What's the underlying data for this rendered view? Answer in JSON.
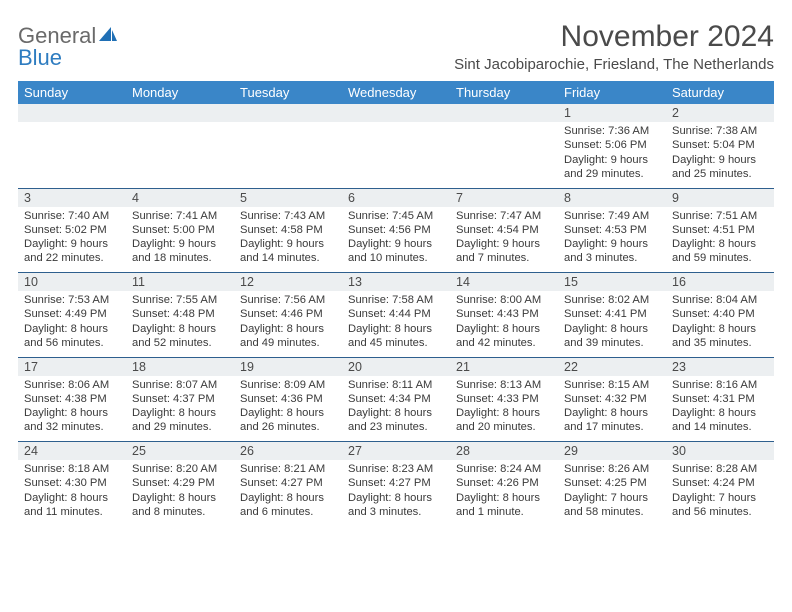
{
  "brand": {
    "part1": "General",
    "part2": "Blue"
  },
  "title": "November 2024",
  "location": "Sint Jacobiparochie, Friesland, The Netherlands",
  "dayHeaders": [
    "Sunday",
    "Monday",
    "Tuesday",
    "Wednesday",
    "Thursday",
    "Friday",
    "Saturday"
  ],
  "colors": {
    "headerBg": "#3a86c8",
    "headerText": "#ffffff",
    "dayNumBg": "#eceff1",
    "ruleColor": "#2e5f8e",
    "bodyText": "#3a3a3a",
    "titleText": "#4a4a4a",
    "logoGrey": "#6a6a6a",
    "logoBlue": "#2e7cc0"
  },
  "weeks": [
    [
      null,
      null,
      null,
      null,
      null,
      {
        "n": "1",
        "sunrise": "7:36 AM",
        "sunset": "5:06 PM",
        "dayH": "9",
        "dayM": "29"
      },
      {
        "n": "2",
        "sunrise": "7:38 AM",
        "sunset": "5:04 PM",
        "dayH": "9",
        "dayM": "25"
      }
    ],
    [
      {
        "n": "3",
        "sunrise": "7:40 AM",
        "sunset": "5:02 PM",
        "dayH": "9",
        "dayM": "22"
      },
      {
        "n": "4",
        "sunrise": "7:41 AM",
        "sunset": "5:00 PM",
        "dayH": "9",
        "dayM": "18"
      },
      {
        "n": "5",
        "sunrise": "7:43 AM",
        "sunset": "4:58 PM",
        "dayH": "9",
        "dayM": "14"
      },
      {
        "n": "6",
        "sunrise": "7:45 AM",
        "sunset": "4:56 PM",
        "dayH": "9",
        "dayM": "10"
      },
      {
        "n": "7",
        "sunrise": "7:47 AM",
        "sunset": "4:54 PM",
        "dayH": "9",
        "dayM": "7"
      },
      {
        "n": "8",
        "sunrise": "7:49 AM",
        "sunset": "4:53 PM",
        "dayH": "9",
        "dayM": "3"
      },
      {
        "n": "9",
        "sunrise": "7:51 AM",
        "sunset": "4:51 PM",
        "dayH": "8",
        "dayM": "59"
      }
    ],
    [
      {
        "n": "10",
        "sunrise": "7:53 AM",
        "sunset": "4:49 PM",
        "dayH": "8",
        "dayM": "56"
      },
      {
        "n": "11",
        "sunrise": "7:55 AM",
        "sunset": "4:48 PM",
        "dayH": "8",
        "dayM": "52"
      },
      {
        "n": "12",
        "sunrise": "7:56 AM",
        "sunset": "4:46 PM",
        "dayH": "8",
        "dayM": "49"
      },
      {
        "n": "13",
        "sunrise": "7:58 AM",
        "sunset": "4:44 PM",
        "dayH": "8",
        "dayM": "45"
      },
      {
        "n": "14",
        "sunrise": "8:00 AM",
        "sunset": "4:43 PM",
        "dayH": "8",
        "dayM": "42"
      },
      {
        "n": "15",
        "sunrise": "8:02 AM",
        "sunset": "4:41 PM",
        "dayH": "8",
        "dayM": "39"
      },
      {
        "n": "16",
        "sunrise": "8:04 AM",
        "sunset": "4:40 PM",
        "dayH": "8",
        "dayM": "35"
      }
    ],
    [
      {
        "n": "17",
        "sunrise": "8:06 AM",
        "sunset": "4:38 PM",
        "dayH": "8",
        "dayM": "32"
      },
      {
        "n": "18",
        "sunrise": "8:07 AM",
        "sunset": "4:37 PM",
        "dayH": "8",
        "dayM": "29"
      },
      {
        "n": "19",
        "sunrise": "8:09 AM",
        "sunset": "4:36 PM",
        "dayH": "8",
        "dayM": "26"
      },
      {
        "n": "20",
        "sunrise": "8:11 AM",
        "sunset": "4:34 PM",
        "dayH": "8",
        "dayM": "23"
      },
      {
        "n": "21",
        "sunrise": "8:13 AM",
        "sunset": "4:33 PM",
        "dayH": "8",
        "dayM": "20"
      },
      {
        "n": "22",
        "sunrise": "8:15 AM",
        "sunset": "4:32 PM",
        "dayH": "8",
        "dayM": "17"
      },
      {
        "n": "23",
        "sunrise": "8:16 AM",
        "sunset": "4:31 PM",
        "dayH": "8",
        "dayM": "14"
      }
    ],
    [
      {
        "n": "24",
        "sunrise": "8:18 AM",
        "sunset": "4:30 PM",
        "dayH": "8",
        "dayM": "11"
      },
      {
        "n": "25",
        "sunrise": "8:20 AM",
        "sunset": "4:29 PM",
        "dayH": "8",
        "dayM": "8"
      },
      {
        "n": "26",
        "sunrise": "8:21 AM",
        "sunset": "4:27 PM",
        "dayH": "8",
        "dayM": "6"
      },
      {
        "n": "27",
        "sunrise": "8:23 AM",
        "sunset": "4:27 PM",
        "dayH": "8",
        "dayM": "3"
      },
      {
        "n": "28",
        "sunrise": "8:24 AM",
        "sunset": "4:26 PM",
        "dayH": "8",
        "dayM": "1"
      },
      {
        "n": "29",
        "sunrise": "8:26 AM",
        "sunset": "4:25 PM",
        "dayH": "7",
        "dayM": "58"
      },
      {
        "n": "30",
        "sunrise": "8:28 AM",
        "sunset": "4:24 PM",
        "dayH": "7",
        "dayM": "56"
      }
    ]
  ],
  "labels": {
    "sunrise": "Sunrise:",
    "sunset": "Sunset:",
    "daylight": "Daylight:",
    "hours": "hours",
    "and": "and",
    "minutes": "minutes.",
    "minute": "minute."
  }
}
